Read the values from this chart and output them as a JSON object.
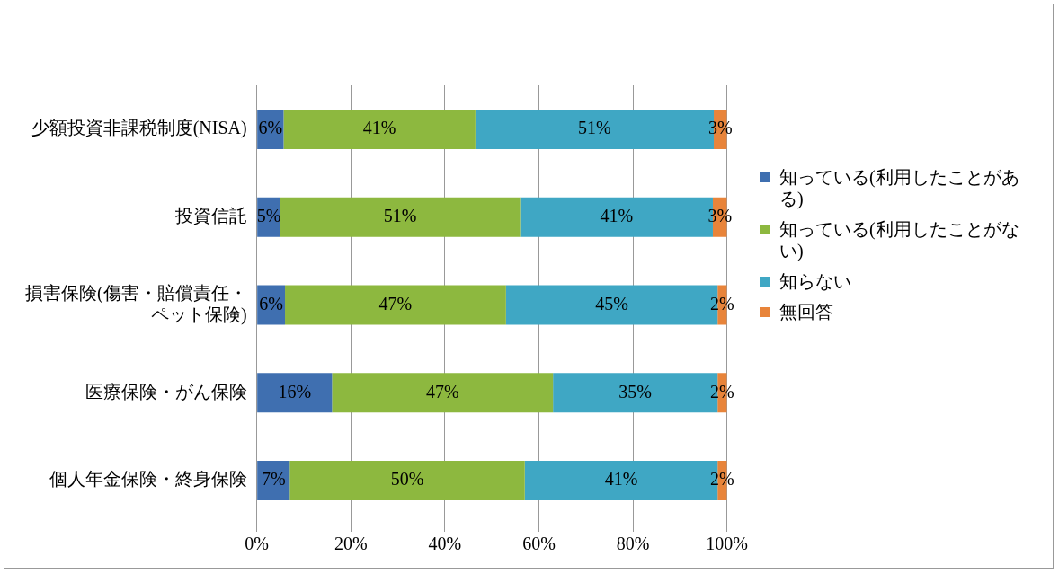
{
  "chart_data": {
    "type": "bar",
    "orientation": "horizontal",
    "stacked": true,
    "categories": [
      "少額投資非課税制度(NISA)",
      "投資信託",
      "損害保険(傷害・賠償責任・ペット保険)",
      "医療保険・がん保険",
      "個人年金保険・終身保険"
    ],
    "series": [
      {
        "name": "知っている(利用したことがある)",
        "color": "#3f6fb0",
        "values": [
          5.7,
          5,
          6,
          16,
          7
        ],
        "value_labels": [
          "6%",
          "5%",
          "6%",
          "16%",
          "7%"
        ]
      },
      {
        "name": "知っている(利用したことがない)",
        "color": "#8db83f",
        "values": [
          40.8,
          51,
          47,
          47,
          50
        ],
        "value_labels": [
          "41%",
          "51%",
          "47%",
          "47%",
          "50%"
        ]
      },
      {
        "name": "知らない",
        "color": "#3fa7c4",
        "values": [
          50.7,
          41,
          45,
          35,
          41
        ],
        "value_labels": [
          "51%",
          "41%",
          "45%",
          "35%",
          "41%"
        ]
      },
      {
        "name": "無回答",
        "color": "#e8843a",
        "values": [
          2.8,
          3,
          2,
          2,
          2
        ],
        "value_labels": [
          "3%",
          "3%",
          "2%",
          "2%",
          "2%"
        ]
      }
    ],
    "xlim": [
      0,
      100
    ],
    "xticks": [
      {
        "value": 0,
        "label": "0%"
      },
      {
        "value": 20,
        "label": "20%"
      },
      {
        "value": 40,
        "label": "40%"
      },
      {
        "value": 60,
        "label": "60%"
      },
      {
        "value": 80,
        "label": "80%"
      },
      {
        "value": 100,
        "label": "100%"
      }
    ],
    "grid": "x",
    "legend": "right"
  }
}
